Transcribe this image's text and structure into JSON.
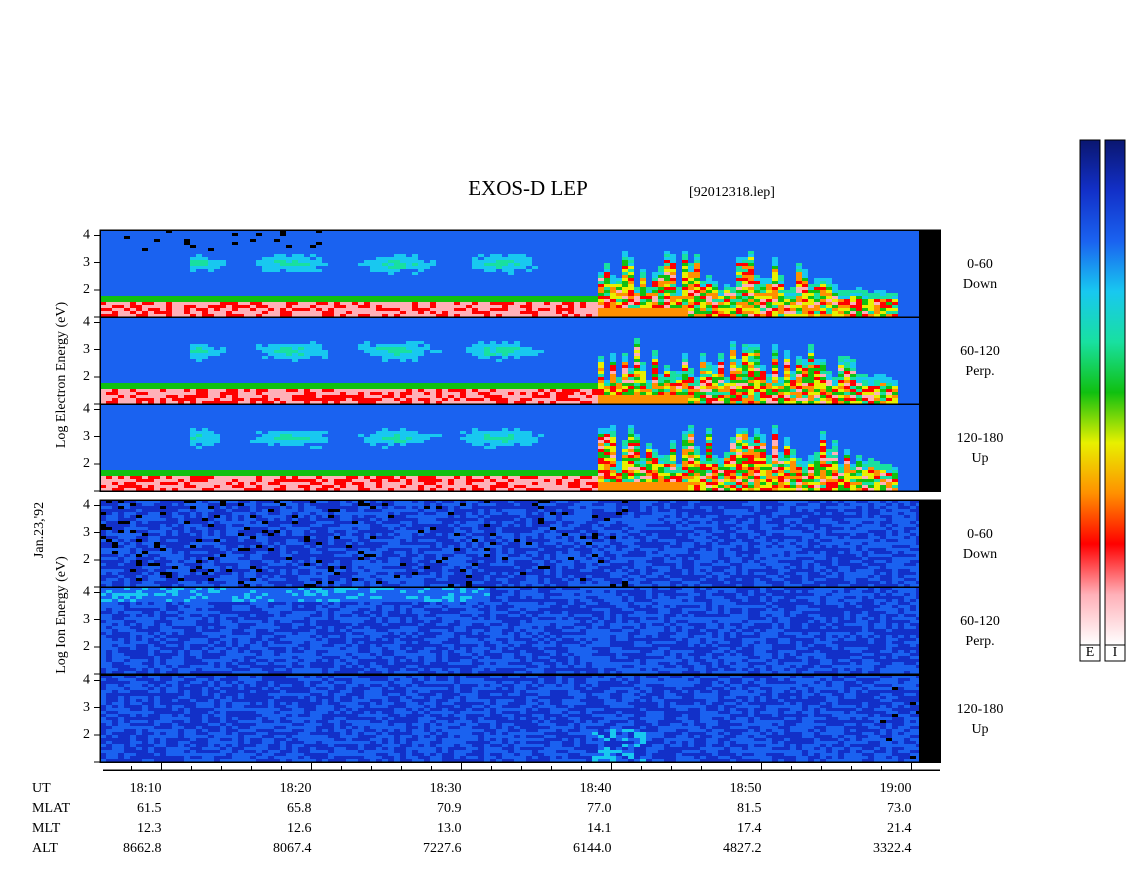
{
  "chart_data": {
    "type": "spectrogram",
    "title": "EXOS-D LEP",
    "file": "[92012318.lep]",
    "date_label": "Jan.23,'92",
    "groups": [
      {
        "ylabel": "Log Electron Energy (eV)",
        "panels": [
          {
            "angle": "0-60",
            "direction": "Down"
          },
          {
            "angle": "60-120",
            "direction": "Perp."
          },
          {
            "angle": "120-180",
            "direction": "Up"
          }
        ]
      },
      {
        "ylabel": "Log Ion Energy (eV)",
        "panels": [
          {
            "angle": "0-60",
            "direction": "Down"
          },
          {
            "angle": "60-120",
            "direction": "Perp."
          },
          {
            "angle": "120-180",
            "direction": "Up"
          }
        ]
      }
    ],
    "ylim": [
      1,
      4.2
    ],
    "yticks": [
      2,
      3,
      4
    ],
    "xlabel": "UT",
    "xlim": [
      1085.9,
      1141.9
    ],
    "xticks": [
      {
        "value": 1090,
        "label": "18:10"
      },
      {
        "value": 1100,
        "label": "18:20"
      },
      {
        "value": 1110,
        "label": "18:30"
      },
      {
        "value": 1120,
        "label": "18:40"
      },
      {
        "value": 1130,
        "label": "18:50"
      },
      {
        "value": 1140,
        "label": "19:00"
      }
    ],
    "xminor": 2,
    "orbit": [
      {
        "label": "MLAT",
        "values": [
          "61.5",
          "65.8",
          "70.9",
          "77.0",
          "81.5",
          "73.0"
        ]
      },
      {
        "label": "MLT",
        "values": [
          "12.3",
          "12.6",
          "13.0",
          "14.1",
          "17.4",
          "21.4"
        ]
      },
      {
        "label": "ALT",
        "values": [
          "8662.8",
          "8067.4",
          "7227.6",
          "6144.0",
          "4827.2",
          "3322.4"
        ]
      }
    ],
    "colormap": [
      "#0a1670",
      "#1230c8",
      "#1a62f0",
      "#18c8f0",
      "#18e0a0",
      "#10c010",
      "#e8f000",
      "#ff9000",
      "#ff0000",
      "#ffb0b8",
      "#ffffff"
    ],
    "colorbar_labels": [
      "E",
      "I"
    ]
  }
}
